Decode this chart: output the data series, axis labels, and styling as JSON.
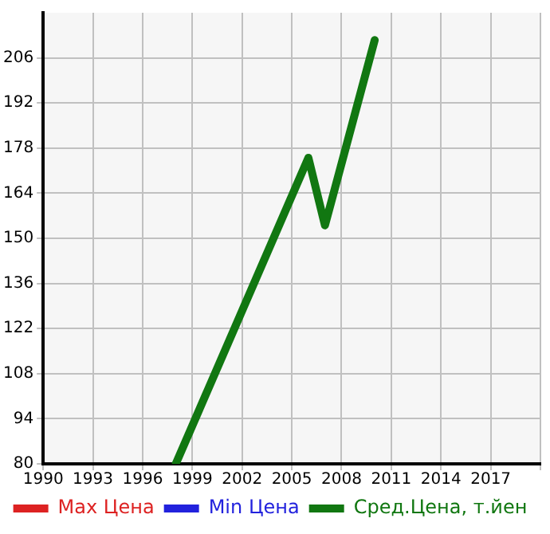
{
  "chart_data": {
    "type": "line",
    "xlim": [
      1990,
      2020
    ],
    "xticks": [
      1990,
      1993,
      1996,
      1999,
      2002,
      2005,
      2008,
      2011,
      2014,
      2017,
      {
        "value": 2020,
        "label": null
      }
    ],
    "ylim": [
      80,
      220
    ],
    "yticks": [
      80,
      94,
      108,
      122,
      136,
      150,
      164,
      178,
      192,
      206
    ],
    "grid": true,
    "legend": "bottom",
    "marker": "none",
    "line_style": "solid",
    "series": [
      {
        "name": "Max Цена",
        "color": "#dd2222"
      },
      {
        "name": "Min Цена",
        "color": "#2222dd"
      },
      {
        "name": "Сред.Цена, т.йен",
        "color": "#117711",
        "x": [
          1998,
          2006,
          2007,
          2010
        ],
        "values": [
          80,
          175,
          154,
          211.5
        ]
      }
    ]
  }
}
